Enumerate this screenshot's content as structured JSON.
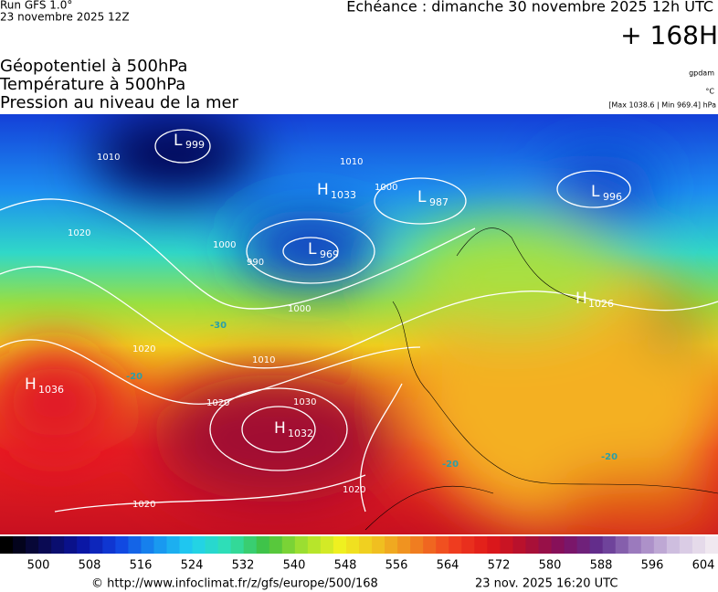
{
  "header": {
    "run": "Run GFS 1.0°",
    "run_date": "23 novembre 2025 12Z",
    "valid": "Echéance : dimanche 30 novembre 2025 12h UTC",
    "lead": "+ 168H",
    "field1": "Géopotentiel à 500hPa",
    "field2": "Température à 500hPa",
    "field3": "Pression au niveau de la mer",
    "unit1": "gpdam",
    "unit2": "°C",
    "extremes": "[Max 1038.6 | Min 969.4] hPa"
  },
  "centers": [
    {
      "letter": "L",
      "value": "999"
    },
    {
      "letter": "H",
      "value": "1033"
    },
    {
      "letter": "L",
      "value": "987"
    },
    {
      "letter": "L",
      "value": "996"
    },
    {
      "letter": "L",
      "value": "969"
    },
    {
      "letter": "H",
      "value": "1026"
    },
    {
      "letter": "H",
      "value": "1036"
    },
    {
      "letter": "H",
      "value": "1032"
    }
  ],
  "isobar_labels": [
    "1010",
    "1010",
    "1000",
    "1000",
    "990",
    "1000",
    "1010",
    "1020",
    "1030",
    "1020",
    "1020",
    "1020",
    "1020"
  ],
  "temperature_labels": [
    "-20",
    "-30",
    "-20",
    "-20"
  ],
  "colorbar": {
    "labels": [
      "500",
      "508",
      "516",
      "524",
      "532",
      "540",
      "548",
      "556",
      "564",
      "572",
      "580",
      "588",
      "596",
      "604"
    ]
  },
  "footer": {
    "source": "© http://www.infoclimat.fr/z/gfs/europe/500/168",
    "generated": "23 nov. 2025 16:20 UTC"
  }
}
